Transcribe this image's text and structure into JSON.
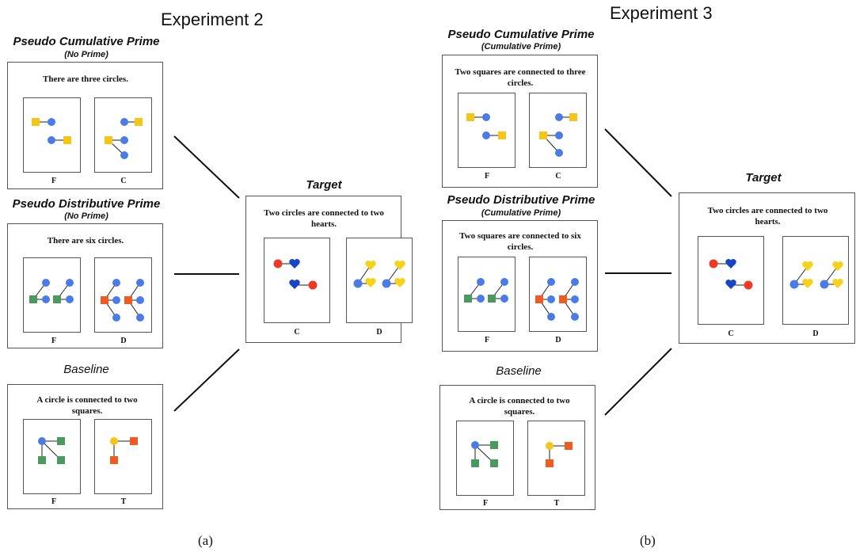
{
  "figure": {
    "left": {
      "experiment_title": "Experiment 2",
      "caption": "(a)",
      "cumulative_prime": {
        "title": "Pseudo Cumulative Prime",
        "subtitle": "(No Prime)",
        "sentence": "There are three circles.",
        "labels": [
          "F",
          "C"
        ]
      },
      "distributive_prime": {
        "title": "Pseudo Distributive Prime",
        "subtitle": "(No Prime)",
        "sentence": "There are six circles.",
        "labels": [
          "F",
          "D"
        ]
      },
      "baseline": {
        "title": "Baseline",
        "sentence": "A circle is connected to two squares.",
        "labels": [
          "F",
          "T"
        ]
      },
      "target": {
        "title": "Target",
        "sentence": "Two circles are connected to two hearts.",
        "labels": [
          "C",
          "D"
        ]
      }
    },
    "right": {
      "experiment_title": "Experiment 3",
      "caption": "(b)",
      "cumulative_prime": {
        "title": "Pseudo Cumulative Prime",
        "subtitle": "(Cumulative Prime)",
        "sentence": "Two squares are connected to three circles.",
        "labels": [
          "F",
          "C"
        ]
      },
      "distributive_prime": {
        "title": "Pseudo Distributive Prime",
        "subtitle": "(Cumulative Prime)",
        "sentence": "Two squares are connected to six circles.",
        "labels": [
          "F",
          "D"
        ]
      },
      "baseline": {
        "title": "Baseline",
        "sentence": "A circle is connected to two squares.",
        "labels": [
          "F",
          "T"
        ]
      },
      "target": {
        "title": "Target",
        "sentence": "Two circles are connected to two hearts.",
        "labels": [
          "C",
          "D"
        ]
      }
    }
  },
  "colors": {
    "blue": "#4a7be6",
    "yellow": "#f5c518",
    "green": "#4a9a5f",
    "orange": "#f05a23",
    "red": "#ee3a24",
    "dark_blue_heart": "#1646c8",
    "heart_yellow": "#f7d21a",
    "line": "#222222"
  }
}
